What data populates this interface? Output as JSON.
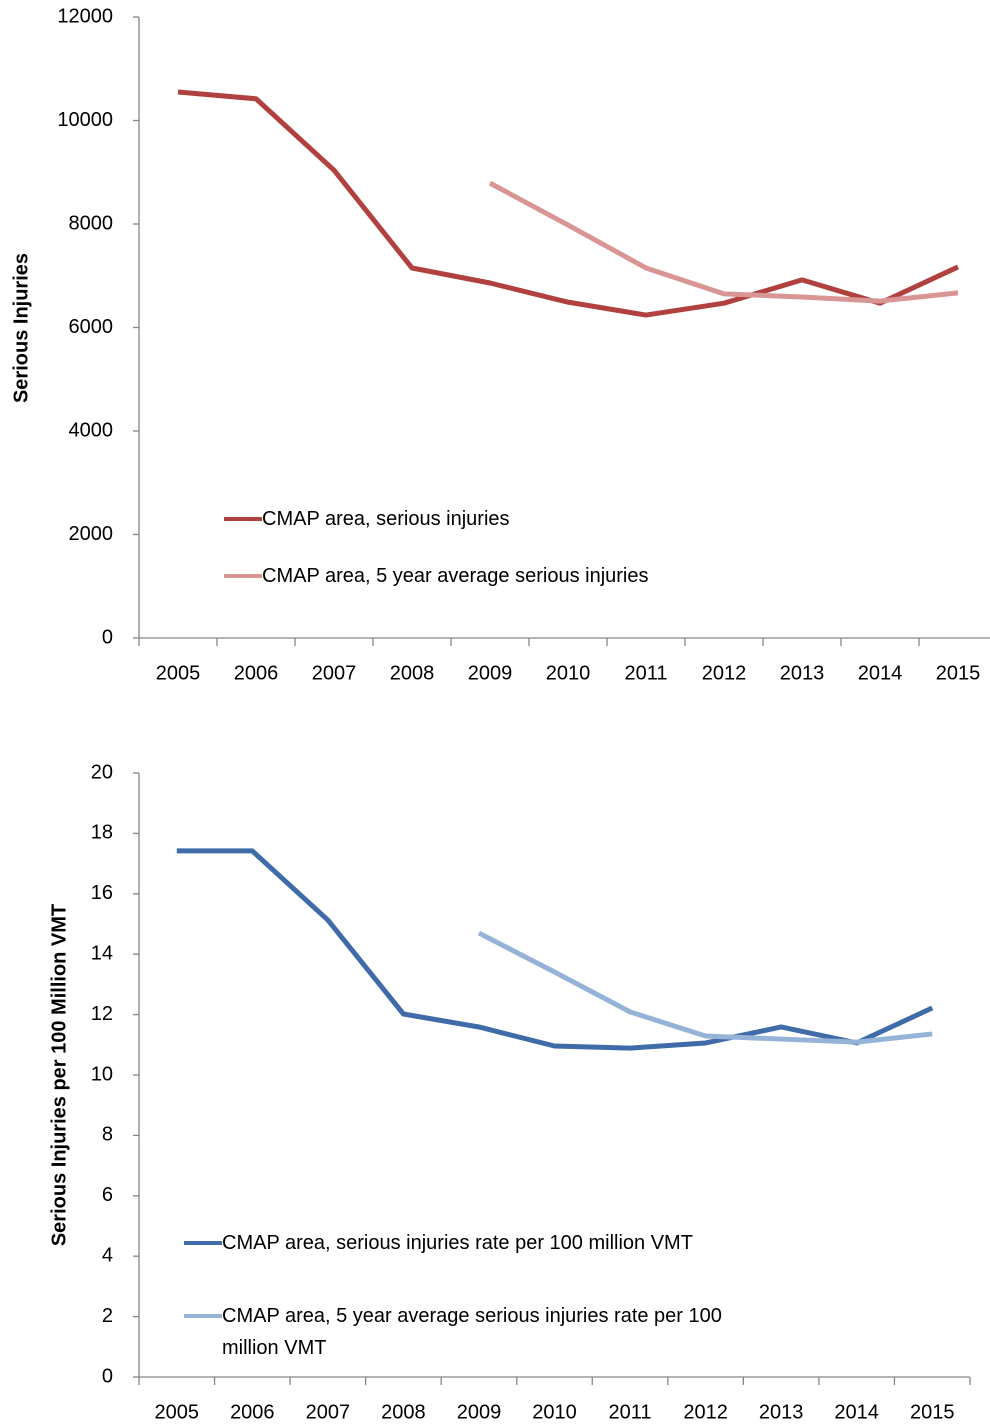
{
  "chart_data": [
    {
      "type": "line",
      "ylabel": "Serious Injuries",
      "categories": [
        "2005",
        "2006",
        "2007",
        "2008",
        "2009",
        "2010",
        "2011",
        "2012",
        "2013",
        "2014",
        "2015"
      ],
      "series": [
        {
          "name": "CMAP area, serious injuries",
          "color": "#b0413e",
          "values": [
            10550,
            10420,
            9040,
            7150,
            6860,
            6490,
            6240,
            6470,
            6920,
            6470,
            7170
          ]
        },
        {
          "name": "CMAP area, 5 year average serious injuries",
          "color": "#d99594",
          "values": [
            null,
            null,
            null,
            null,
            8790,
            7980,
            7150,
            6650,
            6590,
            6510,
            6670
          ]
        }
      ],
      "ylim": [
        0,
        12000
      ],
      "yticks": [
        0,
        2000,
        4000,
        6000,
        8000,
        10000,
        12000
      ],
      "grid": false
    },
    {
      "type": "line",
      "ylabel": "Serious Injuries per 100 Million VMT",
      "categories": [
        "2005",
        "2006",
        "2007",
        "2008",
        "2009",
        "2010",
        "2011",
        "2012",
        "2013",
        "2014",
        "2015"
      ],
      "series": [
        {
          "name": "CMAP area, serious injuries rate per 100 million VMT",
          "color": "#3f6ba8",
          "values": [
            17.42,
            17.42,
            15.13,
            12.02,
            11.59,
            10.96,
            10.89,
            11.06,
            11.59,
            11.06,
            12.22
          ]
        },
        {
          "name": "CMAP area, 5 year average serious injuries rate per 100 million VMT",
          "color": "#95b3d7",
          "values": [
            null,
            null,
            null,
            null,
            14.7,
            13.41,
            12.09,
            11.29,
            11.19,
            11.09,
            11.36
          ]
        }
      ],
      "ylim": [
        0,
        20
      ],
      "yticks": [
        0,
        2,
        4,
        6,
        8,
        10,
        12,
        14,
        16,
        18,
        20
      ],
      "grid": false
    }
  ]
}
